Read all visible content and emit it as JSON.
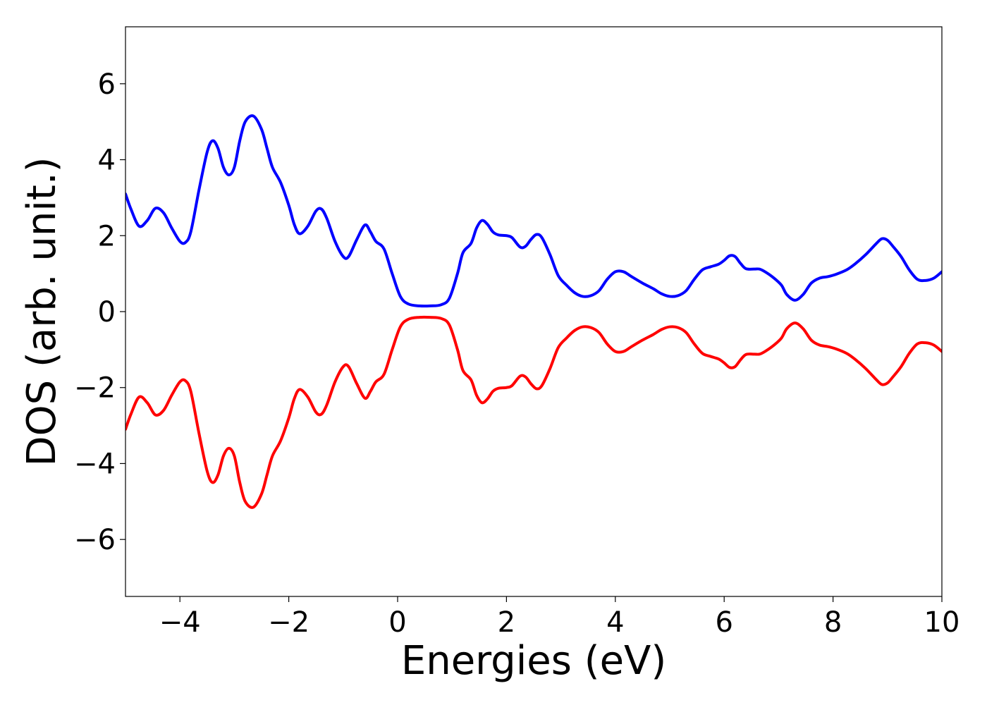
{
  "chart_data": {
    "type": "line",
    "xlabel": "Energies (eV)",
    "ylabel": "DOS (arb. unit.)",
    "xlim": [
      -5,
      10
    ],
    "ylim": [
      -7.5,
      7.5
    ],
    "xticks": [
      -4,
      -2,
      0,
      2,
      4,
      6,
      8,
      10
    ],
    "xtick_labels": [
      "−4",
      "−2",
      "0",
      "2",
      "4",
      "6",
      "8",
      "10"
    ],
    "yticks": [
      -6,
      -4,
      -2,
      0,
      2,
      4,
      6
    ],
    "ytick_labels": [
      "−6",
      "−4",
      "−2",
      "0",
      "2",
      "4",
      "6"
    ],
    "grid": false,
    "legend": "none",
    "series": [
      {
        "color": "#0000ff",
        "points": [
          [
            -5.0,
            3.1
          ],
          [
            -4.9,
            2.7
          ],
          [
            -4.75,
            2.25
          ],
          [
            -4.6,
            2.4
          ],
          [
            -4.45,
            2.72
          ],
          [
            -4.3,
            2.6
          ],
          [
            -4.15,
            2.2
          ],
          [
            -4.0,
            1.85
          ],
          [
            -3.9,
            1.82
          ],
          [
            -3.8,
            2.1
          ],
          [
            -3.65,
            3.2
          ],
          [
            -3.5,
            4.2
          ],
          [
            -3.4,
            4.5
          ],
          [
            -3.3,
            4.3
          ],
          [
            -3.2,
            3.8
          ],
          [
            -3.1,
            3.6
          ],
          [
            -3.0,
            3.8
          ],
          [
            -2.9,
            4.5
          ],
          [
            -2.8,
            5.0
          ],
          [
            -2.65,
            5.15
          ],
          [
            -2.5,
            4.8
          ],
          [
            -2.4,
            4.3
          ],
          [
            -2.3,
            3.8
          ],
          [
            -2.15,
            3.4
          ],
          [
            -2.0,
            2.8
          ],
          [
            -1.9,
            2.3
          ],
          [
            -1.8,
            2.05
          ],
          [
            -1.65,
            2.25
          ],
          [
            -1.5,
            2.65
          ],
          [
            -1.4,
            2.7
          ],
          [
            -1.3,
            2.45
          ],
          [
            -1.15,
            1.85
          ],
          [
            -1.0,
            1.45
          ],
          [
            -0.9,
            1.45
          ],
          [
            -0.75,
            1.9
          ],
          [
            -0.6,
            2.28
          ],
          [
            -0.5,
            2.1
          ],
          [
            -0.4,
            1.85
          ],
          [
            -0.25,
            1.65
          ],
          [
            -0.1,
            1.0
          ],
          [
            0.05,
            0.4
          ],
          [
            0.2,
            0.2
          ],
          [
            0.4,
            0.15
          ],
          [
            0.6,
            0.15
          ],
          [
            0.8,
            0.18
          ],
          [
            0.95,
            0.35
          ],
          [
            1.1,
            1.0
          ],
          [
            1.2,
            1.55
          ],
          [
            1.35,
            1.8
          ],
          [
            1.45,
            2.2
          ],
          [
            1.55,
            2.4
          ],
          [
            1.65,
            2.3
          ],
          [
            1.75,
            2.1
          ],
          [
            1.85,
            2.02
          ],
          [
            2.0,
            2.0
          ],
          [
            2.1,
            1.95
          ],
          [
            2.25,
            1.7
          ],
          [
            2.35,
            1.72
          ],
          [
            2.45,
            1.9
          ],
          [
            2.55,
            2.03
          ],
          [
            2.65,
            1.95
          ],
          [
            2.8,
            1.5
          ],
          [
            2.95,
            0.95
          ],
          [
            3.1,
            0.7
          ],
          [
            3.25,
            0.5
          ],
          [
            3.4,
            0.4
          ],
          [
            3.55,
            0.42
          ],
          [
            3.7,
            0.55
          ],
          [
            3.85,
            0.85
          ],
          [
            4.0,
            1.05
          ],
          [
            4.15,
            1.05
          ],
          [
            4.3,
            0.92
          ],
          [
            4.5,
            0.75
          ],
          [
            4.7,
            0.6
          ],
          [
            4.85,
            0.47
          ],
          [
            5.0,
            0.4
          ],
          [
            5.15,
            0.42
          ],
          [
            5.3,
            0.55
          ],
          [
            5.45,
            0.85
          ],
          [
            5.6,
            1.1
          ],
          [
            5.75,
            1.18
          ],
          [
            5.9,
            1.25
          ],
          [
            6.0,
            1.35
          ],
          [
            6.1,
            1.47
          ],
          [
            6.2,
            1.45
          ],
          [
            6.3,
            1.27
          ],
          [
            6.4,
            1.13
          ],
          [
            6.55,
            1.12
          ],
          [
            6.65,
            1.12
          ],
          [
            6.75,
            1.05
          ],
          [
            6.9,
            0.9
          ],
          [
            7.05,
            0.7
          ],
          [
            7.15,
            0.45
          ],
          [
            7.3,
            0.3
          ],
          [
            7.45,
            0.45
          ],
          [
            7.6,
            0.75
          ],
          [
            7.75,
            0.88
          ],
          [
            7.9,
            0.92
          ],
          [
            8.05,
            0.98
          ],
          [
            8.25,
            1.1
          ],
          [
            8.4,
            1.25
          ],
          [
            8.6,
            1.5
          ],
          [
            8.8,
            1.8
          ],
          [
            8.9,
            1.92
          ],
          [
            9.0,
            1.88
          ],
          [
            9.1,
            1.72
          ],
          [
            9.25,
            1.45
          ],
          [
            9.4,
            1.1
          ],
          [
            9.55,
            0.85
          ],
          [
            9.7,
            0.82
          ],
          [
            9.85,
            0.88
          ],
          [
            10.0,
            1.05
          ]
        ]
      },
      {
        "color": "#ff0000",
        "points": [
          [
            -5.0,
            -3.1
          ],
          [
            -4.9,
            -2.7
          ],
          [
            -4.75,
            -2.25
          ],
          [
            -4.6,
            -2.4
          ],
          [
            -4.45,
            -2.72
          ],
          [
            -4.3,
            -2.6
          ],
          [
            -4.15,
            -2.2
          ],
          [
            -4.0,
            -1.85
          ],
          [
            -3.9,
            -1.82
          ],
          [
            -3.8,
            -2.1
          ],
          [
            -3.65,
            -3.2
          ],
          [
            -3.5,
            -4.2
          ],
          [
            -3.4,
            -4.5
          ],
          [
            -3.3,
            -4.3
          ],
          [
            -3.2,
            -3.8
          ],
          [
            -3.1,
            -3.6
          ],
          [
            -3.0,
            -3.8
          ],
          [
            -2.9,
            -4.5
          ],
          [
            -2.8,
            -5.0
          ],
          [
            -2.65,
            -5.15
          ],
          [
            -2.5,
            -4.8
          ],
          [
            -2.4,
            -4.3
          ],
          [
            -2.3,
            -3.8
          ],
          [
            -2.15,
            -3.4
          ],
          [
            -2.0,
            -2.8
          ],
          [
            -1.9,
            -2.3
          ],
          [
            -1.8,
            -2.05
          ],
          [
            -1.65,
            -2.25
          ],
          [
            -1.5,
            -2.65
          ],
          [
            -1.4,
            -2.7
          ],
          [
            -1.3,
            -2.45
          ],
          [
            -1.15,
            -1.85
          ],
          [
            -1.0,
            -1.45
          ],
          [
            -0.9,
            -1.45
          ],
          [
            -0.75,
            -1.9
          ],
          [
            -0.6,
            -2.28
          ],
          [
            -0.5,
            -2.1
          ],
          [
            -0.4,
            -1.85
          ],
          [
            -0.25,
            -1.65
          ],
          [
            -0.1,
            -1.0
          ],
          [
            0.05,
            -0.4
          ],
          [
            0.2,
            -0.2
          ],
          [
            0.4,
            -0.15
          ],
          [
            0.6,
            -0.15
          ],
          [
            0.8,
            -0.18
          ],
          [
            0.95,
            -0.35
          ],
          [
            1.1,
            -1.0
          ],
          [
            1.2,
            -1.55
          ],
          [
            1.35,
            -1.8
          ],
          [
            1.45,
            -2.2
          ],
          [
            1.55,
            -2.4
          ],
          [
            1.65,
            -2.3
          ],
          [
            1.75,
            -2.1
          ],
          [
            1.85,
            -2.02
          ],
          [
            2.0,
            -2.0
          ],
          [
            2.1,
            -1.95
          ],
          [
            2.25,
            -1.7
          ],
          [
            2.35,
            -1.72
          ],
          [
            2.45,
            -1.9
          ],
          [
            2.55,
            -2.03
          ],
          [
            2.65,
            -1.95
          ],
          [
            2.8,
            -1.5
          ],
          [
            2.95,
            -0.95
          ],
          [
            3.1,
            -0.7
          ],
          [
            3.25,
            -0.5
          ],
          [
            3.4,
            -0.4
          ],
          [
            3.55,
            -0.42
          ],
          [
            3.7,
            -0.55
          ],
          [
            3.85,
            -0.85
          ],
          [
            4.0,
            -1.05
          ],
          [
            4.15,
            -1.05
          ],
          [
            4.3,
            -0.92
          ],
          [
            4.5,
            -0.75
          ],
          [
            4.7,
            -0.6
          ],
          [
            4.85,
            -0.47
          ],
          [
            5.0,
            -0.4
          ],
          [
            5.15,
            -0.42
          ],
          [
            5.3,
            -0.55
          ],
          [
            5.45,
            -0.85
          ],
          [
            5.6,
            -1.1
          ],
          [
            5.75,
            -1.18
          ],
          [
            5.9,
            -1.25
          ],
          [
            6.0,
            -1.35
          ],
          [
            6.1,
            -1.47
          ],
          [
            6.2,
            -1.45
          ],
          [
            6.3,
            -1.27
          ],
          [
            6.4,
            -1.13
          ],
          [
            6.55,
            -1.12
          ],
          [
            6.65,
            -1.12
          ],
          [
            6.75,
            -1.05
          ],
          [
            6.9,
            -0.9
          ],
          [
            7.05,
            -0.7
          ],
          [
            7.15,
            -0.45
          ],
          [
            7.3,
            -0.3
          ],
          [
            7.45,
            -0.45
          ],
          [
            7.6,
            -0.75
          ],
          [
            7.75,
            -0.88
          ],
          [
            7.9,
            -0.92
          ],
          [
            8.05,
            -0.98
          ],
          [
            8.25,
            -1.1
          ],
          [
            8.4,
            -1.25
          ],
          [
            8.6,
            -1.5
          ],
          [
            8.8,
            -1.8
          ],
          [
            8.9,
            -1.92
          ],
          [
            9.0,
            -1.88
          ],
          [
            9.1,
            -1.72
          ],
          [
            9.25,
            -1.45
          ],
          [
            9.4,
            -1.1
          ],
          [
            9.55,
            -0.85
          ],
          [
            9.7,
            -0.82
          ],
          [
            9.85,
            -0.88
          ],
          [
            10.0,
            -1.05
          ]
        ]
      }
    ]
  }
}
